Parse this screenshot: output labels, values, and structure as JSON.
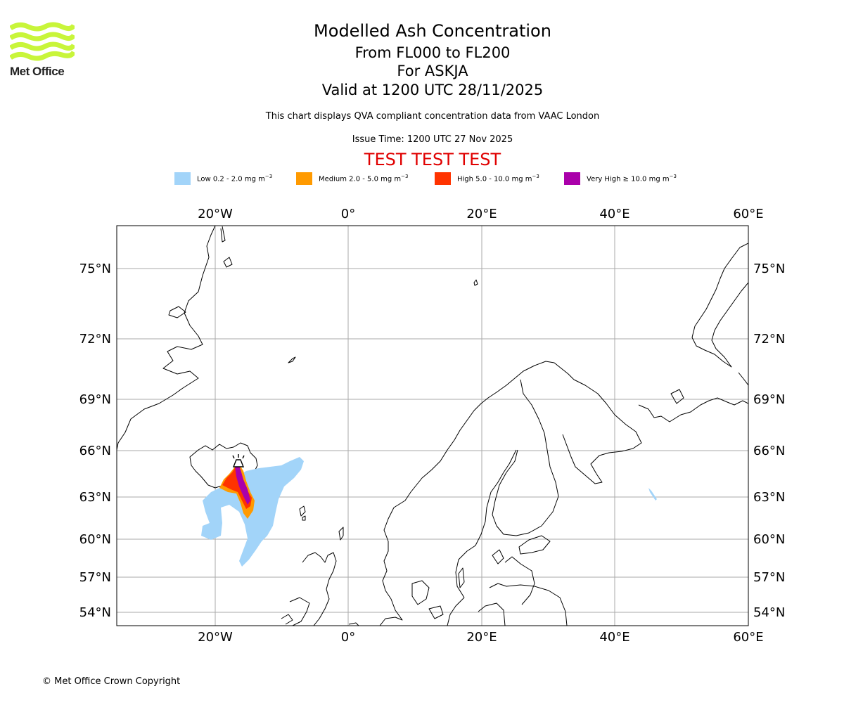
{
  "logo": {
    "text": "Met Office",
    "icon": "met-office-wave-logo",
    "color": "#c8f53a"
  },
  "titles": {
    "main": "Modelled Ash Concentration",
    "levels": "From FL000 to FL200",
    "volcano": "For ASKJA",
    "valid": "Valid at 1200 UTC 28/11/2025",
    "compliance": "This chart displays QVA compliant concentration data from VAAC London",
    "issue": "Issue Time: 1200 UTC 27 Nov 2025",
    "test": "TEST TEST TEST"
  },
  "legend": [
    {
      "prefix": "Low 0.2 - 2.0 mg m",
      "sup": "−3",
      "color": "#a2d4f9"
    },
    {
      "prefix": "Medium 2.0 - 5.0 mg m",
      "sup": "−3",
      "color": "#ff9a00"
    },
    {
      "prefix": "High 5.0 - 10.0 mg m",
      "sup": "−3",
      "color": "#ff3300"
    },
    {
      "prefix": "Very High  ≥  10.0 mg m",
      "sup": "−3",
      "color": "#aa00aa"
    }
  ],
  "map": {
    "lon_ticks": [
      "20°W",
      "0°",
      "20°E",
      "40°E",
      "60°E"
    ],
    "lat_ticks": [
      "75°N",
      "72°N",
      "69°N",
      "66°N",
      "63°N",
      "60°N",
      "57°N",
      "54°N"
    ],
    "volcano_name": "ASKJA",
    "volcano_icon": "volcano-icon",
    "gridline_color": "#aaaaaa"
  },
  "copyright": "© Met Office Crown Copyright"
}
